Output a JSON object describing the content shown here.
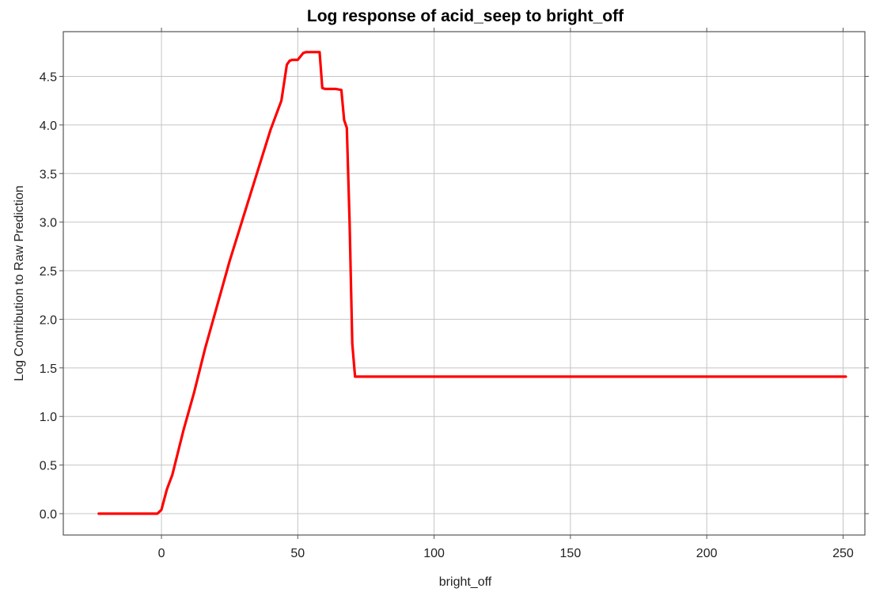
{
  "chart_data": {
    "type": "line",
    "title": "Log response of acid_seep to bright_off",
    "xlabel": "bright_off",
    "ylabel": "Log Contribution to Raw Prediction",
    "xlim": [
      -36,
      258
    ],
    "ylim": [
      -0.22,
      4.96
    ],
    "x_ticks": [
      0,
      50,
      100,
      150,
      200,
      250
    ],
    "y_ticks": [
      0.0,
      0.5,
      1.0,
      1.5,
      2.0,
      2.5,
      3.0,
      3.5,
      4.0,
      4.5
    ],
    "x_tick_labels": [
      "0",
      "50",
      "100",
      "150",
      "200",
      "250"
    ],
    "y_tick_labels": [
      "0.0",
      "0.5",
      "1.0",
      "1.5",
      "2.0",
      "2.5",
      "3.0",
      "3.5",
      "4.0",
      "4.5"
    ],
    "grid": true,
    "series": [
      {
        "color": "#ff0000",
        "x": [
          -23,
          -1.5,
          0,
          2,
          4,
          8,
          12,
          16,
          20,
          25,
          30,
          35,
          40,
          44,
          46,
          47,
          48,
          50,
          52,
          53,
          55,
          58,
          59,
          60,
          62,
          64,
          66,
          67,
          68,
          69,
          70,
          71,
          72,
          251
        ],
        "y": [
          0.0,
          0.0,
          0.04,
          0.25,
          0.4,
          0.85,
          1.25,
          1.7,
          2.1,
          2.6,
          3.05,
          3.5,
          3.95,
          4.25,
          4.62,
          4.66,
          4.67,
          4.67,
          4.74,
          4.75,
          4.75,
          4.75,
          4.38,
          4.37,
          4.37,
          4.37,
          4.36,
          4.05,
          3.97,
          3.0,
          1.75,
          1.41,
          1.41,
          1.41
        ]
      }
    ]
  }
}
